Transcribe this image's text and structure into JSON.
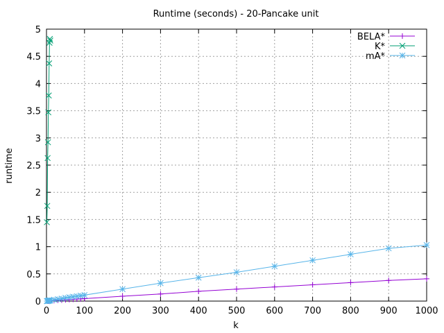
{
  "chart_data": {
    "type": "line",
    "title": "Runtime (seconds) - 20-Pancake unit",
    "xlabel": "k",
    "ylabel": "runtime",
    "xlim": [
      0,
      1000
    ],
    "ylim": [
      0,
      5
    ],
    "xticks": [
      0,
      100,
      200,
      300,
      400,
      500,
      600,
      700,
      800,
      900,
      1000
    ],
    "yticks": [
      0,
      0.5,
      1,
      1.5,
      2,
      2.5,
      3,
      3.5,
      4,
      4.5,
      5
    ],
    "grid": true,
    "legend_position": "top-right",
    "series": [
      {
        "name": "BELA*",
        "color": "#9400d3",
        "marker": "plus",
        "x": [
          1,
          2,
          3,
          4,
          5,
          6,
          7,
          8,
          9,
          10,
          20,
          30,
          40,
          50,
          60,
          70,
          80,
          90,
          100,
          200,
          300,
          400,
          500,
          600,
          700,
          800,
          900,
          1000
        ],
        "y": [
          0.0,
          0.0,
          0.0,
          0.0,
          0.0,
          0.005,
          0.005,
          0.005,
          0.005,
          0.006,
          0.01,
          0.015,
          0.018,
          0.023,
          0.028,
          0.032,
          0.037,
          0.041,
          0.045,
          0.09,
          0.13,
          0.18,
          0.22,
          0.26,
          0.3,
          0.34,
          0.38,
          0.41
        ]
      },
      {
        "name": "K*",
        "color": "#009e73",
        "marker": "cross",
        "x": [
          1,
          2,
          3,
          4,
          5,
          6,
          7,
          8,
          9,
          10
        ],
        "y": [
          1.45,
          1.75,
          2.63,
          2.92,
          3.47,
          3.78,
          4.37,
          4.75,
          4.82,
          4.79
        ]
      },
      {
        "name": "mA*",
        "color": "#56b4e9",
        "marker": "star",
        "x": [
          1,
          2,
          3,
          4,
          5,
          6,
          7,
          8,
          9,
          10,
          20,
          30,
          40,
          50,
          60,
          70,
          80,
          90,
          100,
          200,
          300,
          400,
          500,
          600,
          700,
          800,
          900,
          1000
        ],
        "y": [
          0.0,
          0.0,
          0.0,
          0.005,
          0.005,
          0.01,
          0.01,
          0.01,
          0.012,
          0.013,
          0.025,
          0.035,
          0.045,
          0.06,
          0.07,
          0.08,
          0.09,
          0.1,
          0.11,
          0.22,
          0.33,
          0.43,
          0.53,
          0.64,
          0.75,
          0.86,
          0.97,
          1.03
        ]
      }
    ]
  }
}
